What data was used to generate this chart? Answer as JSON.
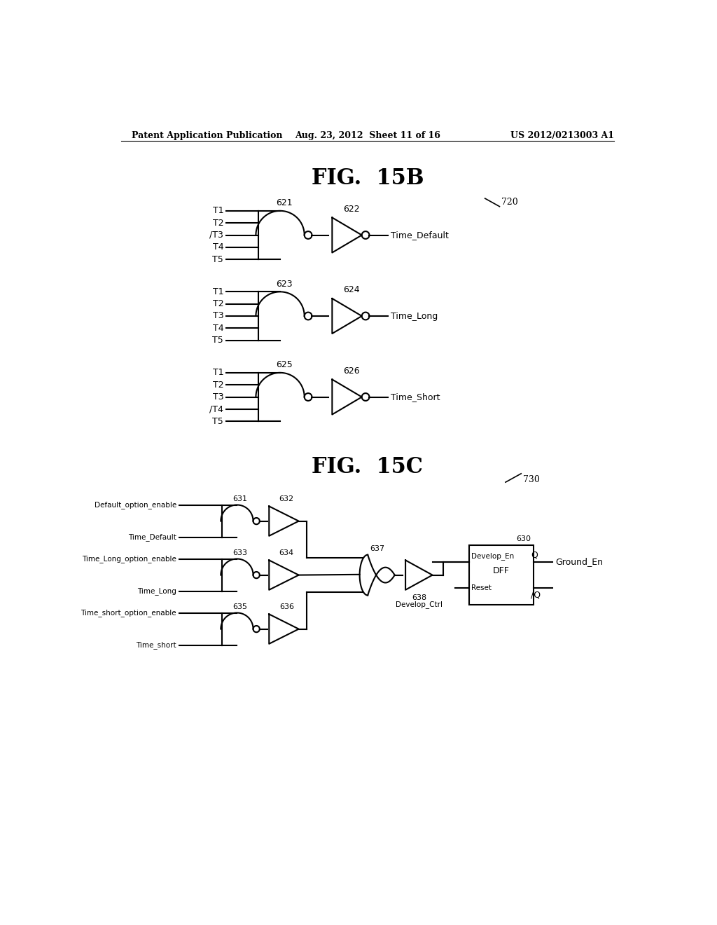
{
  "background_color": "#ffffff",
  "header_left": "Patent Application Publication",
  "header_mid": "Aug. 23, 2012  Sheet 11 of 16",
  "header_right": "US 2012/0213003 A1",
  "fig15b_title": "FIG.  15B",
  "fig15c_title": "FIG.  15C",
  "label_720": "720",
  "label_730": "730"
}
